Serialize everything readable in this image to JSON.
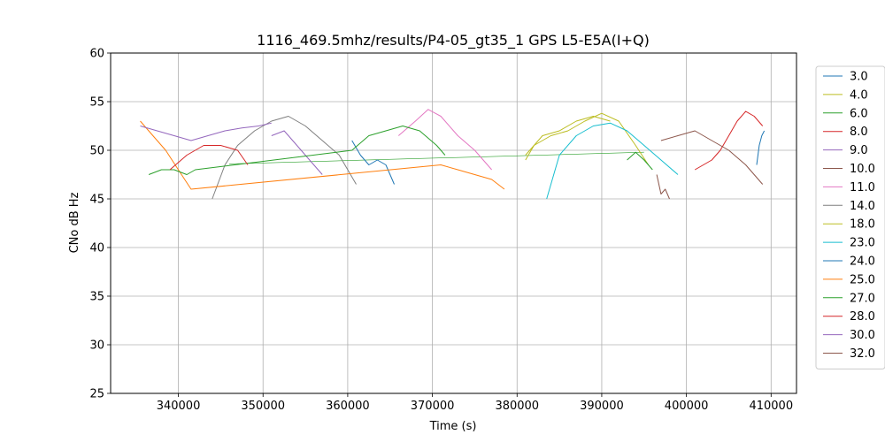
{
  "chart_data": {
    "type": "line",
    "title": "1116_469.5mhz/results/P4-05_gt35_1 GPS L5-E5A(I+Q)",
    "xlabel": "Time (s)",
    "ylabel": "CNo dB Hz",
    "xlim": [
      332000,
      413000
    ],
    "ylim": [
      25,
      60
    ],
    "xticks": [
      340000,
      350000,
      360000,
      370000,
      380000,
      390000,
      400000,
      410000
    ],
    "xtick_labels": [
      "340000",
      "350000",
      "360000",
      "370000",
      "380000",
      "390000",
      "400000",
      "410000"
    ],
    "yticks": [
      25,
      30,
      35,
      40,
      45,
      50,
      55,
      60
    ],
    "ytick_labels": [
      "25",
      "30",
      "35",
      "40",
      "45",
      "50",
      "55",
      "60"
    ],
    "grid": true,
    "legend_position": "right-outside",
    "series": [
      {
        "name": "3.0",
        "color": "#1f77b4",
        "x": [
          408300,
          408600,
          408900,
          409200
        ],
        "y": [
          48.5,
          50.5,
          51.5,
          52.0
        ]
      },
      {
        "name": "4.0",
        "color": "#bcbd22",
        "x": [
          381000,
          382000,
          384000,
          386000,
          388000,
          390000,
          392000,
          394000,
          395500
        ],
        "y": [
          49.0,
          50.5,
          51.5,
          52.0,
          53.0,
          53.8,
          53.0,
          50.5,
          48.5
        ]
      },
      {
        "name": "6.0",
        "color": "#2ca02c",
        "x": [
          393000,
          394000,
          395000,
          396000
        ],
        "y": [
          49.0,
          49.8,
          49.0,
          48.0
        ]
      },
      {
        "name": "8.0",
        "color": "#d62728",
        "x": [
          401000,
          402000,
          403000,
          404000,
          405000,
          406000,
          407000,
          408000,
          409000
        ],
        "y": [
          48.0,
          48.5,
          49.0,
          50.0,
          51.5,
          53.0,
          54.0,
          53.5,
          52.5
        ]
      },
      {
        "name": "9.0",
        "color": "#9467bd",
        "x": [
          351000,
          352500,
          354000,
          355500,
          357000
        ],
        "y": [
          51.5,
          52.0,
          50.5,
          49.0,
          47.5
        ]
      },
      {
        "name": "10.0",
        "color": "#8c564b",
        "x": [
          397000,
          399000,
          401000,
          403000,
          405000,
          407000,
          409000
        ],
        "y": [
          51.0,
          51.5,
          52.0,
          51.0,
          50.0,
          48.5,
          46.5
        ]
      },
      {
        "name": "11.0",
        "color": "#e377c2",
        "x": [
          366000,
          368000,
          369500,
          371000,
          373000,
          375000,
          377000
        ],
        "y": [
          51.5,
          53.0,
          54.2,
          53.5,
          51.5,
          50.0,
          48.0
        ]
      },
      {
        "name": "14.0",
        "color": "#7f7f7f",
        "x": [
          344000,
          345500,
          347000,
          349000,
          351000,
          353000,
          355000,
          357000,
          359000,
          361000
        ],
        "y": [
          45.0,
          48.5,
          50.5,
          52.0,
          53.0,
          53.5,
          52.5,
          51.0,
          49.5,
          46.5
        ]
      },
      {
        "name": "18.0",
        "color": "#bcbd22",
        "x": [
          381000,
          383000,
          385000,
          387000,
          389000,
          391000
        ],
        "y": [
          49.5,
          51.5,
          52.0,
          53.0,
          53.5,
          53.0
        ]
      },
      {
        "name": "23.0",
        "color": "#17becf",
        "x": [
          383500,
          385000,
          387000,
          389000,
          391000,
          393000,
          395000,
          397000,
          399000
        ],
        "y": [
          45.0,
          49.5,
          51.5,
          52.5,
          52.8,
          52.0,
          50.5,
          49.0,
          47.5
        ]
      },
      {
        "name": "24.0",
        "color": "#1f77b4",
        "x": [
          360500,
          361500,
          362500,
          363500,
          364500,
          365500
        ],
        "y": [
          51.0,
          49.5,
          48.5,
          49.0,
          48.5,
          46.5
        ]
      },
      {
        "name": "25.0",
        "color": "#ff7f0e",
        "x": [
          335500,
          337000,
          338500,
          340000,
          341500,
          371000,
          373000,
          375000,
          377000,
          378500
        ],
        "y": [
          53.0,
          51.5,
          50.0,
          48.0,
          46.0,
          48.5,
          48.0,
          47.5,
          47.0,
          46.0
        ]
      },
      {
        "name": "27.0",
        "color": "#2ca02c",
        "x": [
          336500,
          338000,
          339500,
          341000,
          342000,
          360500,
          362500,
          364500,
          366500,
          368500,
          370500,
          371500
        ],
        "y": [
          47.5,
          48.0,
          48.0,
          47.5,
          48.0,
          50.0,
          51.5,
          52.0,
          52.5,
          52.0,
          50.5,
          49.5
        ]
      },
      {
        "name": "28.0",
        "color": "#d62728",
        "x": [
          339000,
          341000,
          343000,
          345000,
          347000,
          348200
        ],
        "y": [
          48.0,
          49.5,
          50.5,
          50.5,
          50.0,
          48.5
        ]
      },
      {
        "name": "30.0",
        "color": "#9467bd",
        "x": [
          335500,
          337500,
          339500,
          341500,
          343500,
          345500,
          347500,
          349500,
          351000
        ],
        "y": [
          52.5,
          52.0,
          51.5,
          51.0,
          51.5,
          52.0,
          52.3,
          52.5,
          52.8
        ]
      },
      {
        "name": "32.0",
        "color": "#8c564b",
        "x": [
          396500,
          397000,
          397500,
          398000
        ],
        "y": [
          47.5,
          45.5,
          46.0,
          45.0
        ]
      }
    ]
  }
}
